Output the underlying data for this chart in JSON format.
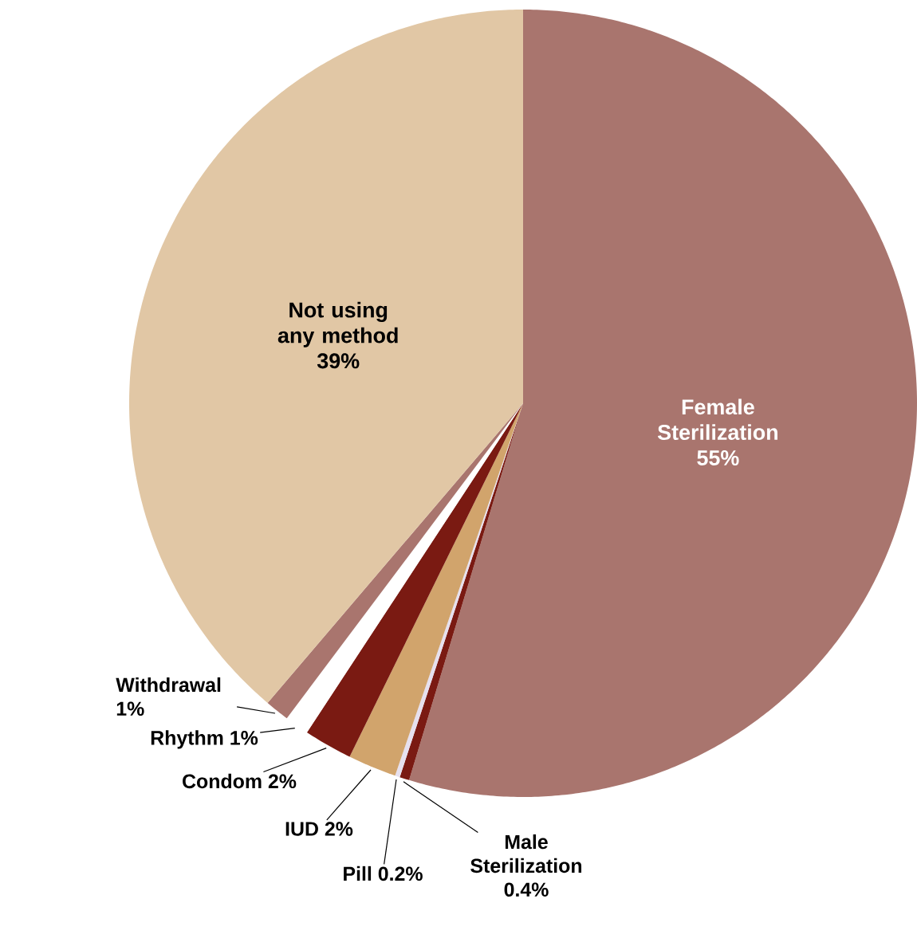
{
  "chart_data": {
    "type": "pie",
    "categories": [
      "Female Sterilization",
      "Male Sterilization",
      "Pill",
      "IUD",
      "Condom",
      "Rhythm",
      "Withdrawal",
      "Not using any method"
    ],
    "values": [
      55,
      0.4,
      0.2,
      2,
      2,
      1,
      1,
      39
    ],
    "value_labels": [
      "55%",
      "0.4%",
      "0.2%",
      "2%",
      "2%",
      "1%",
      "1%",
      "39%"
    ],
    "colors": [
      "#a9756e",
      "#7a1a12",
      "#e6e0ee",
      "#d1a46c",
      "#7a1a12",
      "#ffffff",
      "#a9756e",
      "#e1c7a5"
    ]
  }
}
